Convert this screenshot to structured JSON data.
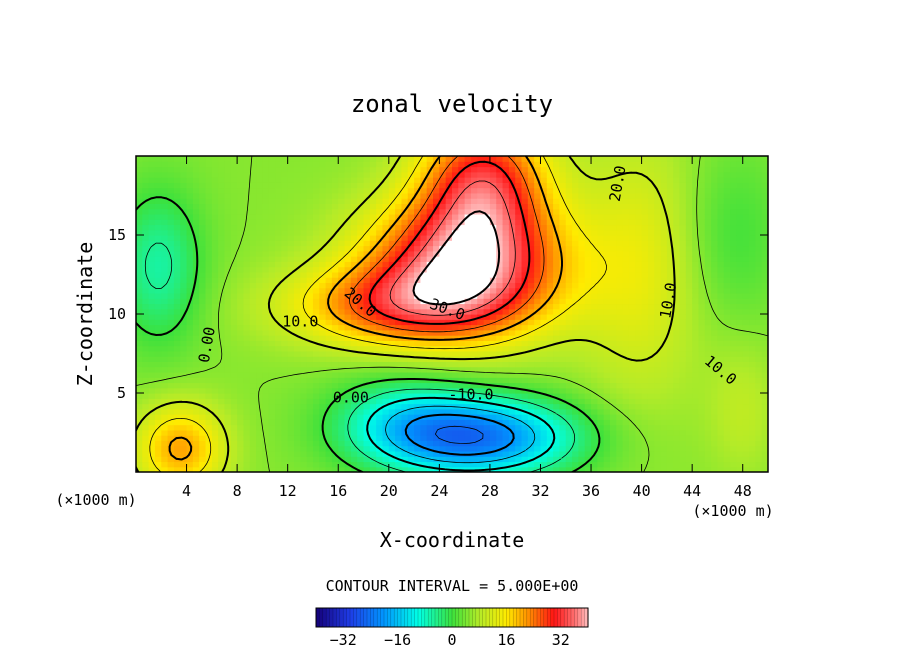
{
  "chart_data": {
    "type": "heatmap",
    "title": "zonal velocity",
    "xlabel": "X-coordinate",
    "ylabel": "Z-coordinate",
    "x_unit_note": "(×1000 m)",
    "x_unit_note_right": "(×1000 m)",
    "xlim": [
      0,
      50
    ],
    "ylim": [
      0,
      20
    ],
    "x_ticks": [
      4,
      8,
      12,
      16,
      20,
      24,
      28,
      32,
      36,
      40,
      44,
      48
    ],
    "y_ticks": [
      5,
      10,
      15
    ],
    "contour_interval_text": "CONTOUR INTERVAL = 5.000E+00",
    "contour_interval": 5.0,
    "contour_labels": [
      {
        "text": "0.00",
        "x": 6,
        "y": 8.0,
        "rotate": -80
      },
      {
        "text": "10.0",
        "x": 13,
        "y": 9.2,
        "rotate": 0
      },
      {
        "text": "20.0",
        "x": 17.5,
        "y": 10.5,
        "rotate": 40
      },
      {
        "text": "30.0",
        "x": 24.5,
        "y": 10.0,
        "rotate": 20
      },
      {
        "text": "20.0",
        "x": 38.5,
        "y": 18.2,
        "rotate": -80
      },
      {
        "text": "10.0",
        "x": 42.5,
        "y": 10.8,
        "rotate": -80
      },
      {
        "text": "10.0",
        "x": 46,
        "y": 6.2,
        "rotate": 40
      },
      {
        "text": "0.00",
        "x": 17,
        "y": 4.4,
        "rotate": 0
      },
      {
        "text": "-10.0",
        "x": 26.5,
        "y": 4.6,
        "rotate": 0
      }
    ],
    "field_features": [
      {
        "kind": "jet_max",
        "x": 26,
        "z": 13,
        "value": 40
      },
      {
        "kind": "upper_jet",
        "x": 27,
        "z": 19,
        "value": 32
      },
      {
        "kind": "low_level_min",
        "x": 27,
        "z": 2.2,
        "value": -20
      },
      {
        "kind": "surface_max",
        "x": 3.5,
        "z": 1.5,
        "value": 18
      },
      {
        "kind": "left_min",
        "x": 1.8,
        "z": 13,
        "value": -8
      }
    ],
    "colorbar": {
      "range": [
        -40,
        40
      ],
      "tick_labels": [
        "−32",
        "−16",
        "0",
        "16",
        "32"
      ],
      "tick_values": [
        -32,
        -16,
        0,
        16,
        32
      ]
    }
  }
}
